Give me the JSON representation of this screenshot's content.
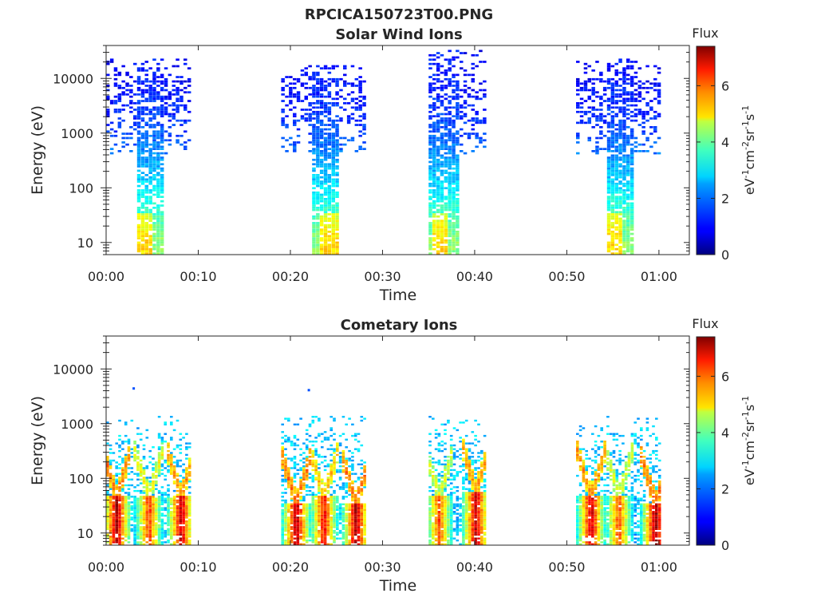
{
  "figure": {
    "title": "RPCICA150723T00.PNG"
  },
  "colorbar": {
    "title": "Flux",
    "label": "eV⁻¹cm⁻²sr⁻¹s⁻¹",
    "range": [
      0,
      7.4
    ],
    "ticks": [
      "0",
      "2",
      "4",
      "6"
    ],
    "colormap": "jet"
  },
  "chart_data": [
    {
      "type": "heatmap",
      "title": "Solar Wind Ions",
      "xlabel": "Time",
      "ylabel": "Energy (eV)",
      "yscale": "log",
      "xlim_minutes": [
        0,
        63.3
      ],
      "ylim": [
        6,
        40000
      ],
      "xticks": [
        "00:00",
        "00:10",
        "00:20",
        "00:30",
        "00:40",
        "00:50",
        "01:00"
      ],
      "yticks": [
        "10",
        "100",
        "1000",
        "10000"
      ],
      "colorbar_range": [
        0,
        7.4
      ],
      "bursts": [
        {
          "start": "00:00",
          "end": "00:09",
          "core": "00:03-00:06",
          "max_energy": 20000,
          "min_energy": 6,
          "high_flux_near": "00:04"
        },
        {
          "start": "00:19",
          "end": "00:28",
          "core": "00:22-00:25",
          "max_energy": 15000,
          "min_energy": 6,
          "high_flux_near": "00:24"
        },
        {
          "start": "00:35",
          "end": "00:41",
          "core": "00:35-00:38",
          "max_energy": 28000,
          "min_energy": 6,
          "high_flux_near": "00:36"
        },
        {
          "start": "00:51",
          "end": "01:00",
          "core": "00:54-00:57",
          "max_energy": 20000,
          "min_energy": 6,
          "high_flux_near": "00:55"
        }
      ],
      "flux_profile": [
        {
          "energy": 10,
          "flux": 3.8
        },
        {
          "energy": 30,
          "flux": 3.3
        },
        {
          "energy": 100,
          "flux": 2.6
        },
        {
          "energy": 300,
          "flux": 2.1
        },
        {
          "energy": 1000,
          "flux": 1.6
        },
        {
          "energy": 3000,
          "flux": 1.3
        },
        {
          "energy": 10000,
          "flux": 1.1
        }
      ]
    },
    {
      "type": "heatmap",
      "title": "Cometary Ions",
      "xlabel": "Time",
      "ylabel": "Energy (eV)",
      "yscale": "log",
      "xlim_minutes": [
        0,
        63.3
      ],
      "ylim": [
        6,
        40000
      ],
      "xticks": [
        "00:00",
        "00:10",
        "00:20",
        "00:30",
        "00:40",
        "00:50",
        "01:00"
      ],
      "yticks": [
        "10",
        "100",
        "1000",
        "10000"
      ],
      "colorbar_range": [
        0,
        7.4
      ],
      "plumes": [
        {
          "time": "00:01",
          "peak_energy": 20,
          "peak_flux": 7.2
        },
        {
          "time": "00:04.5",
          "peak_energy": 20,
          "peak_flux": 6.2
        },
        {
          "time": "00:08",
          "peak_energy": 20,
          "peak_flux": 7.0
        },
        {
          "time": "00:20.5",
          "peak_energy": 15,
          "peak_flux": 7.2
        },
        {
          "time": "00:23.5",
          "peak_energy": 20,
          "peak_flux": 6.6
        },
        {
          "time": "00:27",
          "peak_energy": 15,
          "peak_flux": 7.2
        },
        {
          "time": "00:36",
          "peak_energy": 20,
          "peak_flux": 6.0
        },
        {
          "time": "00:40",
          "peak_energy": 25,
          "peak_flux": 7.0
        },
        {
          "time": "00:52.5",
          "peak_energy": 20,
          "peak_flux": 7.0
        },
        {
          "time": "00:55.5",
          "peak_energy": 20,
          "peak_flux": 6.0
        },
        {
          "time": "00:59.5",
          "peak_energy": 15,
          "peak_flux": 7.3
        }
      ],
      "active_intervals": [
        "00:00-00:09",
        "00:19-00:28",
        "00:35-00:41",
        "00:51-01:00"
      ],
      "max_energy": 1200,
      "isolated_points": [
        {
          "time": "00:03",
          "energy": 4400
        },
        {
          "time": "00:22",
          "energy": 4100
        }
      ]
    }
  ]
}
